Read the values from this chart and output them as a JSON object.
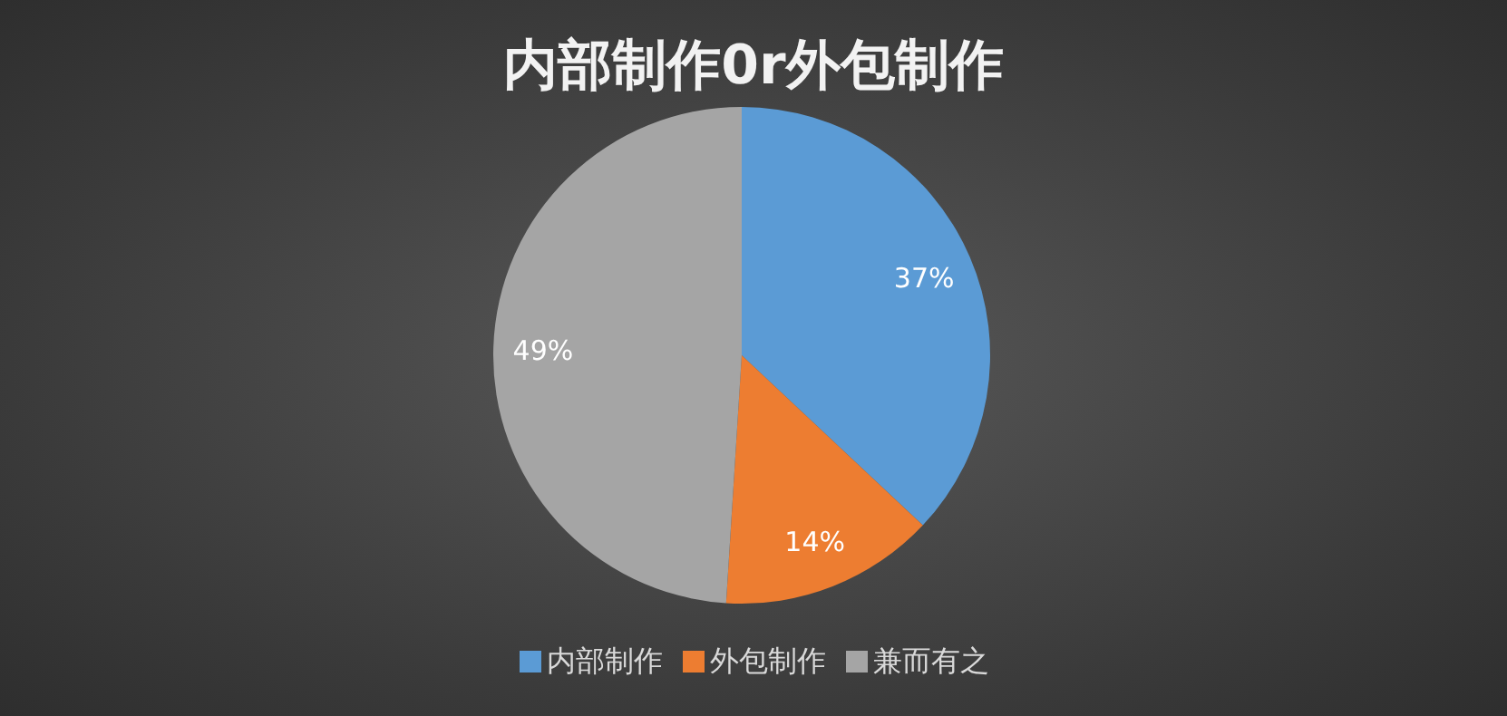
{
  "chart_data": {
    "type": "pie",
    "title": "内部制作0r外包制作",
    "categories": [
      "内部制作",
      "外包制作",
      "兼而有之"
    ],
    "values": [
      37,
      14,
      49
    ],
    "colors": [
      "#5b9bd5",
      "#ed7d31",
      "#a5a5a5"
    ],
    "value_labels": [
      "37%",
      "14%",
      "49%"
    ],
    "legend": "bottom"
  }
}
